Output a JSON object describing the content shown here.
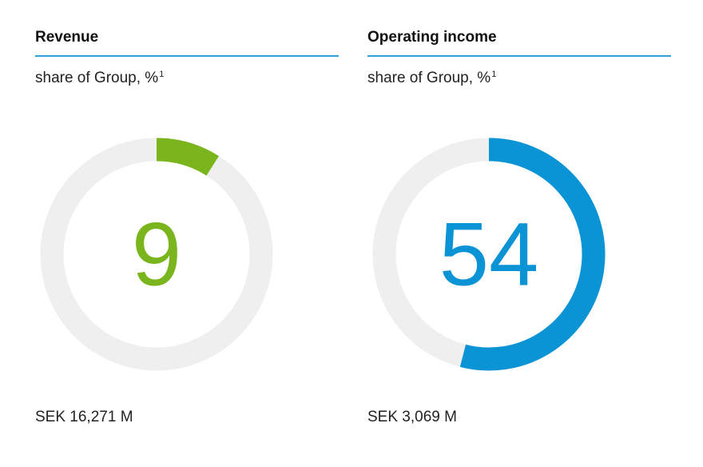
{
  "chart_data": [
    {
      "type": "pie",
      "title": "Revenue",
      "subtitle": "share of Group, %",
      "subtitle_footnote": "1",
      "value": 9,
      "center_label": "9",
      "max": 100,
      "footer": "SEK 16,271 M",
      "color": "#7ab51d",
      "track_color": "#efefef"
    },
    {
      "type": "pie",
      "title": "Operating income",
      "subtitle": "share of Group, %",
      "subtitle_footnote": "1",
      "value": 54,
      "center_label": "54",
      "max": 100,
      "footer": "SEK 3,069 M",
      "color": "#0a93d5",
      "track_color": "#efefef"
    }
  ],
  "accent_rule_color": "#2e9fd8"
}
